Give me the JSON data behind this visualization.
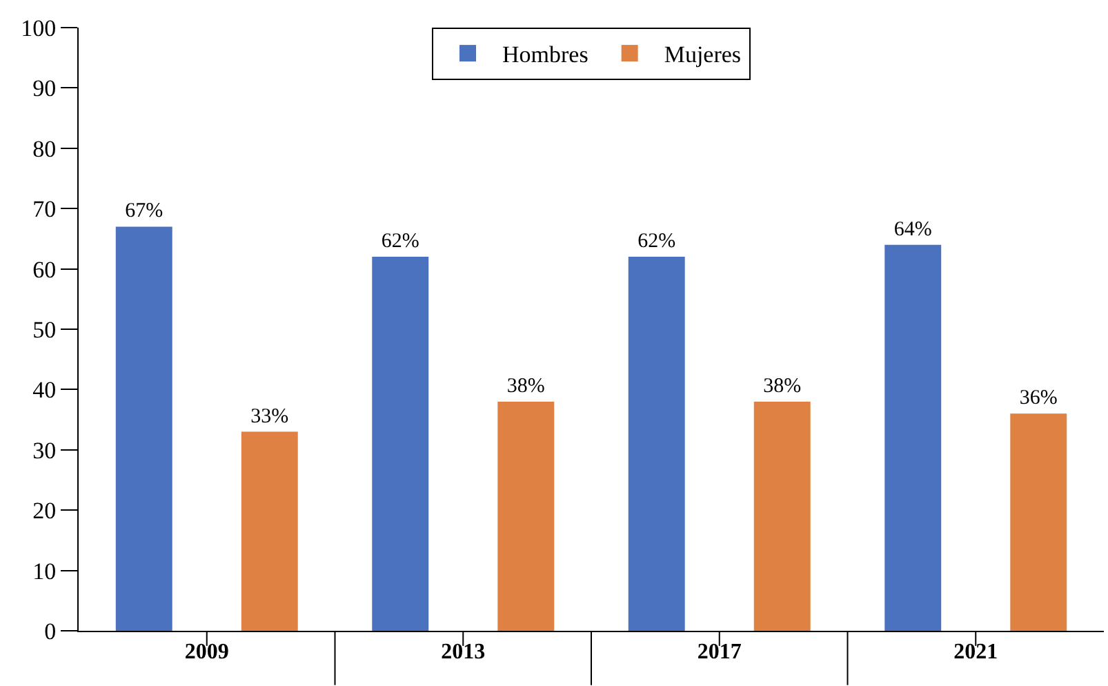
{
  "chart_data": {
    "type": "bar",
    "categories": [
      "2009",
      "2013",
      "2017",
      "2021"
    ],
    "series": [
      {
        "name": "Hombres",
        "color": "#4a72bf",
        "values": [
          67,
          62,
          62,
          64
        ],
        "value_labels": [
          "67%",
          "62%",
          "62%",
          "64%"
        ]
      },
      {
        "name": "Mujeres",
        "color": "#de8142",
        "values": [
          33,
          38,
          38,
          36
        ],
        "value_labels": [
          "33%",
          "38%",
          "38%",
          "36%"
        ]
      }
    ],
    "ylim": [
      0,
      100
    ],
    "yticks": [
      0,
      10,
      20,
      30,
      40,
      50,
      60,
      70,
      80,
      90,
      100
    ],
    "legend": "top"
  }
}
